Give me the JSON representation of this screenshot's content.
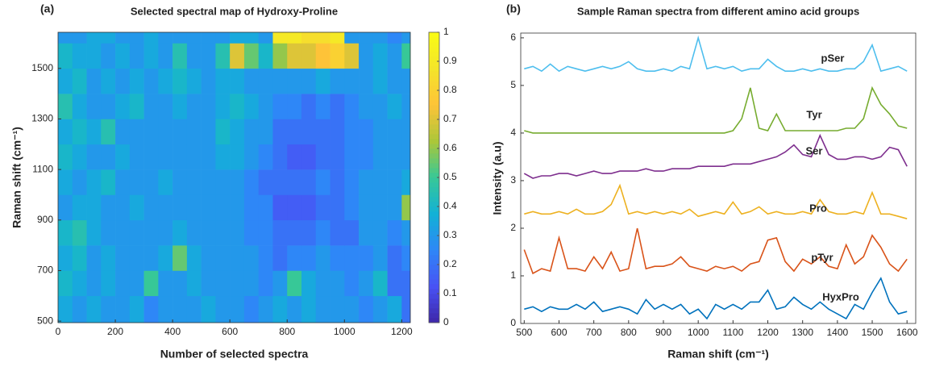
{
  "chart_data": [
    {
      "type": "heatmap",
      "panel_label": "(a)",
      "title": "Selected spectral map of Hydroxy-Proline",
      "xlabel": "Number of selected spectra",
      "ylabel": "Raman shift (cm⁻¹)",
      "xlim": [
        0,
        1230
      ],
      "ylim": [
        494,
        1643
      ],
      "xticks": [
        0,
        200,
        400,
        600,
        800,
        1000,
        1200
      ],
      "yticks": [
        500,
        700,
        900,
        1100,
        1300,
        1500
      ],
      "colormap": "parula",
      "clim": [
        0,
        1
      ],
      "cticks": [
        0,
        0.1,
        0.2,
        0.3,
        0.4,
        0.5,
        0.6,
        0.7,
        0.8,
        0.9,
        1
      ],
      "xbins": [
        0,
        50,
        100,
        150,
        200,
        250,
        300,
        350,
        400,
        450,
        500,
        550,
        600,
        650,
        700,
        750,
        800,
        850,
        900,
        950,
        1000,
        1050,
        1100,
        1150,
        1200,
        1230
      ],
      "ybins": [
        494,
        600,
        700,
        800,
        900,
        1000,
        1100,
        1200,
        1300,
        1400,
        1500,
        1600,
        1643
      ],
      "values": [
        [
          0.35,
          0.3,
          0.35,
          0.3,
          0.3,
          0.35,
          0.25,
          0.3,
          0.3,
          0.3,
          0.35,
          0.3,
          0.3,
          0.25,
          0.3,
          0.35,
          0.3,
          0.35,
          0.3,
          0.3,
          0.3,
          0.25,
          0.3,
          0.35,
          0.2
        ],
        [
          0.4,
          0.35,
          0.3,
          0.35,
          0.3,
          0.3,
          0.5,
          0.3,
          0.3,
          0.35,
          0.3,
          0.3,
          0.3,
          0.3,
          0.25,
          0.3,
          0.5,
          0.35,
          0.3,
          0.3,
          0.25,
          0.3,
          0.4,
          0.2,
          0.2
        ],
        [
          0.35,
          0.4,
          0.3,
          0.35,
          0.3,
          0.3,
          0.3,
          0.35,
          0.55,
          0.35,
          0.3,
          0.3,
          0.3,
          0.3,
          0.25,
          0.2,
          0.25,
          0.25,
          0.3,
          0.25,
          0.25,
          0.25,
          0.3,
          0.2,
          0.25
        ],
        [
          0.4,
          0.45,
          0.35,
          0.3,
          0.3,
          0.3,
          0.3,
          0.3,
          0.35,
          0.3,
          0.3,
          0.3,
          0.3,
          0.25,
          0.25,
          0.2,
          0.2,
          0.2,
          0.25,
          0.2,
          0.2,
          0.3,
          0.3,
          0.25,
          0.3
        ],
        [
          0.3,
          0.35,
          0.35,
          0.3,
          0.3,
          0.35,
          0.3,
          0.3,
          0.3,
          0.3,
          0.3,
          0.3,
          0.3,
          0.25,
          0.25,
          0.15,
          0.15,
          0.15,
          0.2,
          0.2,
          0.25,
          0.3,
          0.3,
          0.3,
          0.6
        ],
        [
          0.35,
          0.3,
          0.35,
          0.4,
          0.3,
          0.3,
          0.3,
          0.35,
          0.3,
          0.3,
          0.3,
          0.3,
          0.3,
          0.25,
          0.2,
          0.2,
          0.2,
          0.2,
          0.25,
          0.2,
          0.25,
          0.3,
          0.3,
          0.3,
          0.35
        ],
        [
          0.4,
          0.35,
          0.3,
          0.3,
          0.35,
          0.3,
          0.3,
          0.3,
          0.3,
          0.3,
          0.3,
          0.35,
          0.35,
          0.3,
          0.25,
          0.2,
          0.15,
          0.15,
          0.2,
          0.2,
          0.25,
          0.25,
          0.3,
          0.3,
          0.3
        ],
        [
          0.35,
          0.4,
          0.35,
          0.45,
          0.3,
          0.3,
          0.3,
          0.3,
          0.3,
          0.3,
          0.3,
          0.4,
          0.35,
          0.3,
          0.3,
          0.2,
          0.2,
          0.2,
          0.2,
          0.2,
          0.25,
          0.25,
          0.3,
          0.3,
          0.3
        ],
        [
          0.45,
          0.35,
          0.3,
          0.3,
          0.35,
          0.4,
          0.3,
          0.3,
          0.35,
          0.3,
          0.3,
          0.35,
          0.4,
          0.35,
          0.3,
          0.25,
          0.25,
          0.2,
          0.25,
          0.2,
          0.25,
          0.3,
          0.3,
          0.35,
          0.3
        ],
        [
          0.35,
          0.4,
          0.3,
          0.35,
          0.3,
          0.35,
          0.3,
          0.35,
          0.4,
          0.35,
          0.3,
          0.35,
          0.35,
          0.3,
          0.3,
          0.3,
          0.3,
          0.3,
          0.35,
          0.3,
          0.3,
          0.3,
          0.35,
          0.3,
          0.3
        ],
        [
          0.4,
          0.35,
          0.35,
          0.3,
          0.35,
          0.3,
          0.35,
          0.3,
          0.45,
          0.3,
          0.3,
          0.45,
          0.7,
          0.55,
          0.4,
          0.6,
          0.7,
          0.7,
          0.75,
          0.8,
          0.7,
          0.3,
          0.35,
          0.3,
          0.5
        ],
        [
          0.3,
          0.3,
          0.35,
          0.35,
          0.3,
          0.3,
          0.35,
          0.3,
          0.3,
          0.3,
          0.3,
          0.3,
          0.35,
          0.35,
          0.3,
          0.9,
          0.9,
          0.85,
          0.85,
          0.9,
          0.3,
          0.3,
          0.3,
          0.25,
          0.3
        ]
      ]
    },
    {
      "type": "line",
      "panel_label": "(b)",
      "title": "Sample Raman spectra from different amino acid groups",
      "xlabel": "Raman shift (cm⁻¹)",
      "ylabel": "Intensity (a.u)",
      "xlim": [
        490,
        1625
      ],
      "ylim": [
        0,
        6.1
      ],
      "xticks": [
        500,
        600,
        700,
        800,
        900,
        1000,
        1100,
        1200,
        1300,
        1400,
        1500,
        1600
      ],
      "yticks": [
        0,
        1,
        2,
        3,
        4,
        5,
        6
      ],
      "x": [
        500,
        525,
        550,
        575,
        600,
        625,
        650,
        675,
        700,
        725,
        750,
        775,
        800,
        825,
        850,
        875,
        900,
        925,
        950,
        975,
        1000,
        1025,
        1050,
        1075,
        1100,
        1125,
        1150,
        1175,
        1200,
        1225,
        1250,
        1275,
        1300,
        1325,
        1350,
        1375,
        1400,
        1425,
        1450,
        1475,
        1500,
        1525,
        1550,
        1575,
        1600
      ],
      "series": [
        {
          "name": "HyxPro",
          "color": "#0072bd",
          "values": [
            0.3,
            0.35,
            0.25,
            0.35,
            0.3,
            0.3,
            0.4,
            0.3,
            0.45,
            0.25,
            0.3,
            0.35,
            0.3,
            0.2,
            0.5,
            0.3,
            0.4,
            0.3,
            0.4,
            0.2,
            0.3,
            0.1,
            0.4,
            0.3,
            0.4,
            0.3,
            0.45,
            0.45,
            0.7,
            0.3,
            0.35,
            0.55,
            0.4,
            0.3,
            0.45,
            0.3,
            0.2,
            0.1,
            0.4,
            0.3,
            0.65,
            0.95,
            0.45,
            0.2,
            0.25
          ]
        },
        {
          "name": "pTyr",
          "color": "#d95319",
          "values": [
            1.55,
            1.05,
            1.15,
            1.1,
            1.8,
            1.15,
            1.15,
            1.1,
            1.4,
            1.15,
            1.5,
            1.1,
            1.15,
            2.0,
            1.15,
            1.2,
            1.2,
            1.25,
            1.4,
            1.2,
            1.15,
            1.1,
            1.2,
            1.15,
            1.2,
            1.1,
            1.25,
            1.3,
            1.75,
            1.8,
            1.3,
            1.1,
            1.35,
            1.25,
            1.4,
            1.2,
            1.15,
            1.65,
            1.25,
            1.4,
            1.85,
            1.6,
            1.25,
            1.1,
            1.35
          ]
        },
        {
          "name": "Pro",
          "color": "#edb120",
          "values": [
            2.3,
            2.35,
            2.3,
            2.3,
            2.35,
            2.3,
            2.4,
            2.3,
            2.3,
            2.35,
            2.5,
            2.9,
            2.3,
            2.35,
            2.3,
            2.35,
            2.3,
            2.35,
            2.3,
            2.4,
            2.25,
            2.3,
            2.35,
            2.3,
            2.55,
            2.3,
            2.35,
            2.45,
            2.3,
            2.35,
            2.3,
            2.3,
            2.35,
            2.3,
            2.6,
            2.35,
            2.3,
            2.3,
            2.35,
            2.3,
            2.75,
            2.3,
            2.3,
            2.25,
            2.2
          ]
        },
        {
          "name": "Ser",
          "color": "#7e2f8e",
          "values": [
            3.15,
            3.05,
            3.1,
            3.1,
            3.15,
            3.15,
            3.1,
            3.15,
            3.2,
            3.15,
            3.15,
            3.2,
            3.2,
            3.2,
            3.25,
            3.2,
            3.2,
            3.25,
            3.25,
            3.25,
            3.3,
            3.3,
            3.3,
            3.3,
            3.35,
            3.35,
            3.35,
            3.4,
            3.45,
            3.5,
            3.6,
            3.75,
            3.55,
            3.5,
            3.95,
            3.55,
            3.45,
            3.45,
            3.5,
            3.5,
            3.45,
            3.5,
            3.7,
            3.65,
            3.3
          ]
        },
        {
          "name": "Tyr",
          "color": "#77ac30",
          "values": [
            4.05,
            4.0,
            4.0,
            4.0,
            4.0,
            4.0,
            4.0,
            4.0,
            4.0,
            4.0,
            4.0,
            4.0,
            4.0,
            4.0,
            4.0,
            4.0,
            4.0,
            4.0,
            4.0,
            4.0,
            4.0,
            4.0,
            4.0,
            4.0,
            4.05,
            4.3,
            4.95,
            4.1,
            4.05,
            4.4,
            4.05,
            4.05,
            4.05,
            4.05,
            4.05,
            4.05,
            4.05,
            4.1,
            4.1,
            4.3,
            4.95,
            4.6,
            4.4,
            4.15,
            4.1
          ]
        },
        {
          "name": "pSer",
          "color": "#4dbeee",
          "values": [
            5.35,
            5.4,
            5.3,
            5.45,
            5.3,
            5.4,
            5.35,
            5.3,
            5.35,
            5.4,
            5.35,
            5.4,
            5.5,
            5.35,
            5.3,
            5.3,
            5.35,
            5.3,
            5.4,
            5.35,
            6.0,
            5.35,
            5.4,
            5.35,
            5.4,
            5.3,
            5.35,
            5.35,
            5.55,
            5.4,
            5.3,
            5.3,
            5.35,
            5.3,
            5.35,
            5.3,
            5.3,
            5.35,
            5.35,
            5.5,
            5.85,
            5.3,
            5.35,
            5.4,
            5.3
          ]
        }
      ]
    }
  ]
}
